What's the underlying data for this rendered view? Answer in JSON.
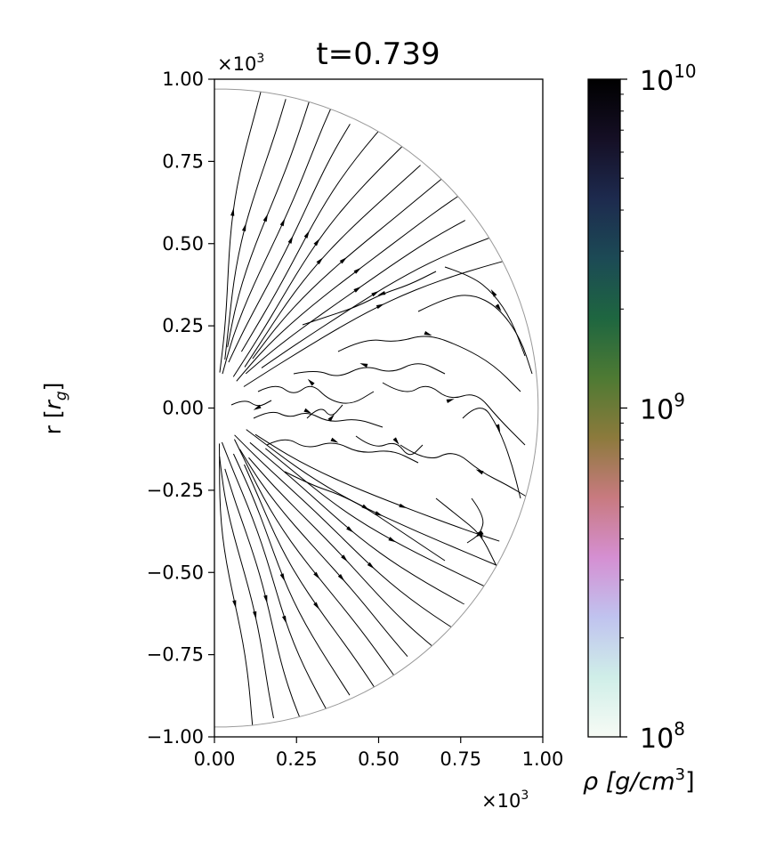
{
  "chart_data": {
    "type": "streamplot",
    "title": "t=0.739",
    "ylabel_main": "r [",
    "ylabel_sub": "r",
    "ylabel_subscript": "g",
    "ylabel_close": "]",
    "x_exponent_base": "×10",
    "x_exponent_power": "3",
    "y_exponent_base": "×10",
    "y_exponent_power": "3",
    "xlim": [
      0.0,
      1.0
    ],
    "ylim": [
      -1.0,
      1.0
    ],
    "x_ticks": [
      0.0,
      0.25,
      0.5,
      0.75,
      1.0
    ],
    "x_tick_labels": [
      "0.00",
      "0.25",
      "0.50",
      "0.75",
      "1.00"
    ],
    "y_ticks": [
      1.0,
      0.75,
      0.5,
      0.25,
      0.0,
      -0.25,
      -0.5,
      -0.75,
      -1.0
    ],
    "y_tick_labels": [
      "1.00",
      "0.75",
      "0.50",
      "0.25",
      "0.00",
      "−0.25",
      "−0.50",
      "−0.75",
      "−1.00"
    ],
    "domain_radius": 0.97,
    "grid": false,
    "colorbar": {
      "label": "ρ [g/cm³]",
      "label_rho": "ρ [",
      "label_unit": "g/cm",
      "label_power": "3",
      "label_close": "]",
      "scale": "log",
      "range": [
        100000000.0,
        10000000000.0
      ],
      "ticks": [
        {
          "value": 10000000000.0,
          "base": "10",
          "exp": "10"
        },
        {
          "value": 1000000000.0,
          "base": "10",
          "exp": "9"
        },
        {
          "value": 100000000.0,
          "base": "10",
          "exp": "8"
        }
      ],
      "colors": [
        "#f7fbf5",
        "#cfeee8",
        "#c0c3ef",
        "#d58fd2",
        "#c87a80",
        "#8c7a3c",
        "#4e7a33",
        "#1e6640",
        "#1c4a55",
        "#1d2a4e",
        "#150f25",
        "#000000"
      ]
    }
  }
}
